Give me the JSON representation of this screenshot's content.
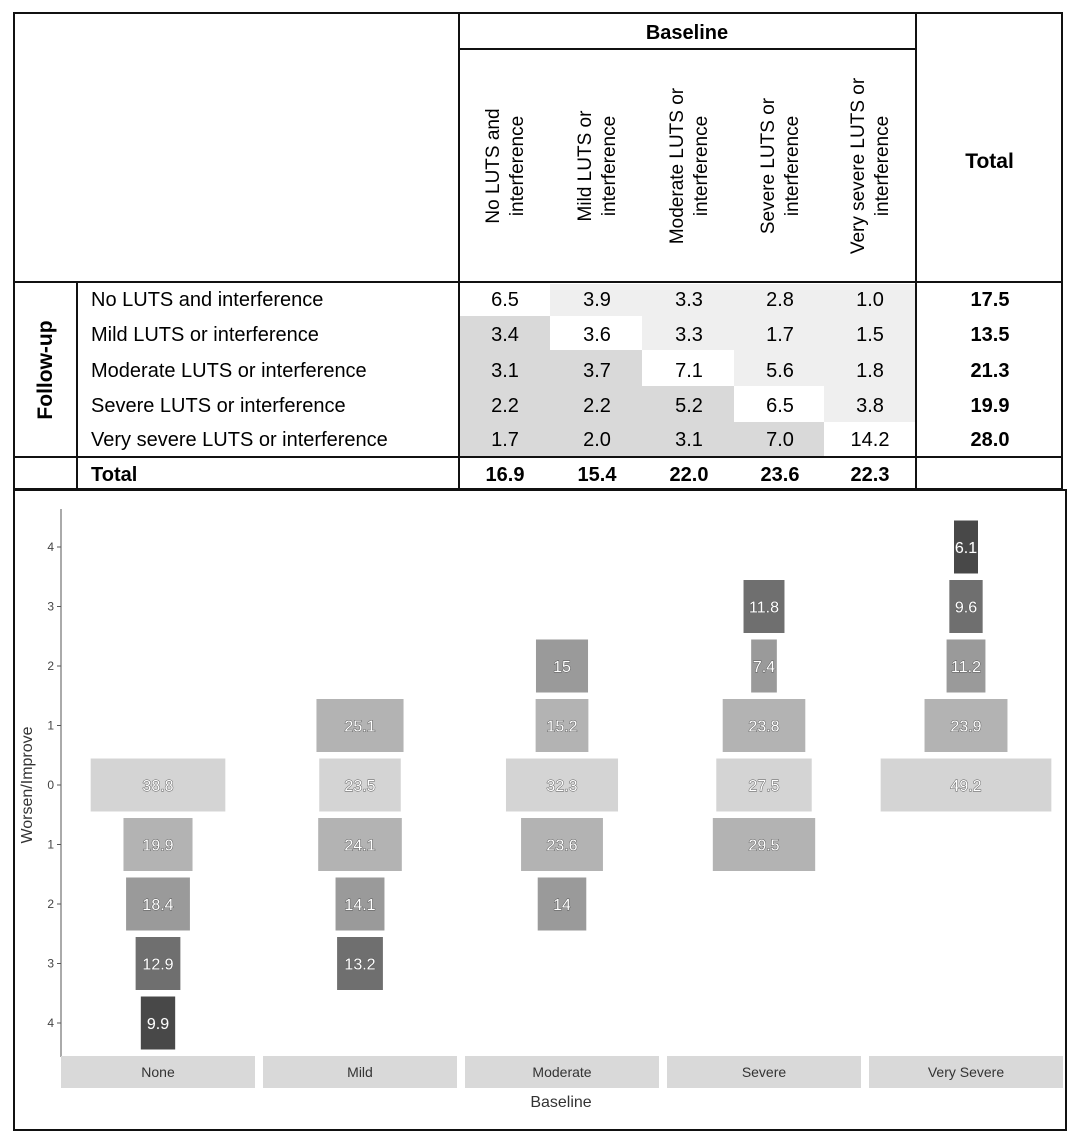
{
  "table": {
    "baseline_header": "Baseline",
    "total_header": "Total",
    "followup_label": "Follow-up",
    "columns": [
      [
        "No LUTS and",
        "interference"
      ],
      [
        "Mild LUTS or",
        "interference"
      ],
      [
        "Moderate LUTS or",
        "interference"
      ],
      [
        "Severe LUTS or",
        "interference"
      ],
      [
        "Very severe LUTS or",
        "interference"
      ]
    ],
    "rows": [
      {
        "label": "No LUTS and interference",
        "values": [
          "6.5",
          "3.9",
          "3.3",
          "2.8",
          "1.0"
        ],
        "total": "17.5"
      },
      {
        "label": "Mild LUTS or interference",
        "values": [
          "3.4",
          "3.6",
          "3.3",
          "1.7",
          "1.5"
        ],
        "total": "13.5"
      },
      {
        "label": "Moderate LUTS or interference",
        "values": [
          "3.1",
          "3.7",
          "7.1",
          "5.6",
          "1.8"
        ],
        "total": "21.3"
      },
      {
        "label": "Severe LUTS or interference",
        "values": [
          "2.2",
          "2.2",
          "5.2",
          "6.5",
          "3.8"
        ],
        "total": "19.9"
      },
      {
        "label": "Very severe LUTS or interference",
        "values": [
          "1.7",
          "2.0",
          "3.1",
          "7.0",
          "14.2"
        ],
        "total": "28.0"
      }
    ],
    "total_row": {
      "label": "Total",
      "values": [
        "16.9",
        "15.4",
        "22.0",
        "23.6",
        "22.3"
      ]
    }
  },
  "chart_data": {
    "type": "bar",
    "xlabel": "Baseline",
    "ylabel": "Worsen/Improve",
    "categories": [
      "None",
      "Mild",
      "Moderate",
      "Severe",
      "Very Severe"
    ],
    "y_ticks": [
      "4",
      "3",
      "2",
      "1",
      "0",
      "1",
      "2",
      "3",
      "4"
    ],
    "series": [
      {
        "values": [
          {
            "level": 0,
            "value": 38.8
          },
          {
            "level": -1,
            "value": 19.9
          },
          {
            "level": -2,
            "value": 18.4
          },
          {
            "level": -3,
            "value": 12.9
          },
          {
            "level": -4,
            "value": 9.9
          }
        ]
      },
      {
        "values": [
          {
            "level": 1,
            "value": 25.1
          },
          {
            "level": 0,
            "value": 23.5
          },
          {
            "level": -1,
            "value": 24.1
          },
          {
            "level": -2,
            "value": 14.1
          },
          {
            "level": -3,
            "value": 13.2
          }
        ]
      },
      {
        "values": [
          {
            "level": 2,
            "value": 15
          },
          {
            "level": 1,
            "value": 15.2
          },
          {
            "level": 0,
            "value": 32.3
          },
          {
            "level": -1,
            "value": 23.6
          },
          {
            "level": -2,
            "value": 14
          }
        ]
      },
      {
        "values": [
          {
            "level": 3,
            "value": 11.8
          },
          {
            "level": 2,
            "value": 7.4
          },
          {
            "level": 1,
            "value": 23.8
          },
          {
            "level": 0,
            "value": 27.5
          },
          {
            "level": -1,
            "value": 29.5
          }
        ]
      },
      {
        "values": [
          {
            "level": 4,
            "value": 6.1
          },
          {
            "level": 3,
            "value": 9.6
          },
          {
            "level": 2,
            "value": 11.2
          },
          {
            "level": 1,
            "value": 23.9
          },
          {
            "level": 0,
            "value": 49.2
          }
        ]
      }
    ],
    "grid": false,
    "legend": "none",
    "colors": {
      "level0": "#d4d4d4",
      "level1": "#b3b3b3",
      "level2": "#9a9a9a",
      "level3": "#6f6f6f",
      "level4": "#484848",
      "strip": "#d9d9d9"
    }
  }
}
